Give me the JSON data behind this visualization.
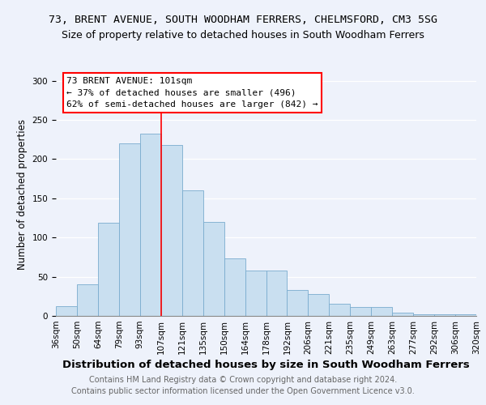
{
  "title": "73, BRENT AVENUE, SOUTH WOODHAM FERRERS, CHELMSFORD, CM3 5SG",
  "subtitle": "Size of property relative to detached houses in South Woodham Ferrers",
  "xlabel": "Distribution of detached houses by size in South Woodham Ferrers",
  "ylabel": "Number of detached properties",
  "bin_labels": [
    "36sqm",
    "50sqm",
    "64sqm",
    "79sqm",
    "93sqm",
    "107sqm",
    "121sqm",
    "135sqm",
    "150sqm",
    "164sqm",
    "178sqm",
    "192sqm",
    "206sqm",
    "221sqm",
    "235sqm",
    "249sqm",
    "263sqm",
    "277sqm",
    "292sqm",
    "306sqm",
    "320sqm"
  ],
  "bar_heights": [
    12,
    40,
    119,
    220,
    232,
    218,
    160,
    120,
    73,
    58,
    58,
    33,
    28,
    15,
    11,
    11,
    4,
    2,
    2,
    2
  ],
  "bar_color": "#c9dff0",
  "bar_edge_color": "#7aacce",
  "vline_color": "red",
  "annotation_title": "73 BRENT AVENUE: 101sqm",
  "annotation_line1": "← 37% of detached houses are smaller (496)",
  "annotation_line2": "62% of semi-detached houses are larger (842) →",
  "annotation_box_color": "white",
  "annotation_box_edge": "red",
  "ylim": [
    0,
    310
  ],
  "footer1": "Contains HM Land Registry data © Crown copyright and database right 2024.",
  "footer2": "Contains public sector information licensed under the Open Government Licence v3.0.",
  "title_fontsize": 9.5,
  "subtitle_fontsize": 9,
  "xlabel_fontsize": 9.5,
  "ylabel_fontsize": 8.5,
  "tick_fontsize": 7.5,
  "annotation_fontsize": 8,
  "footer_fontsize": 7,
  "background_color": "#eef2fb"
}
